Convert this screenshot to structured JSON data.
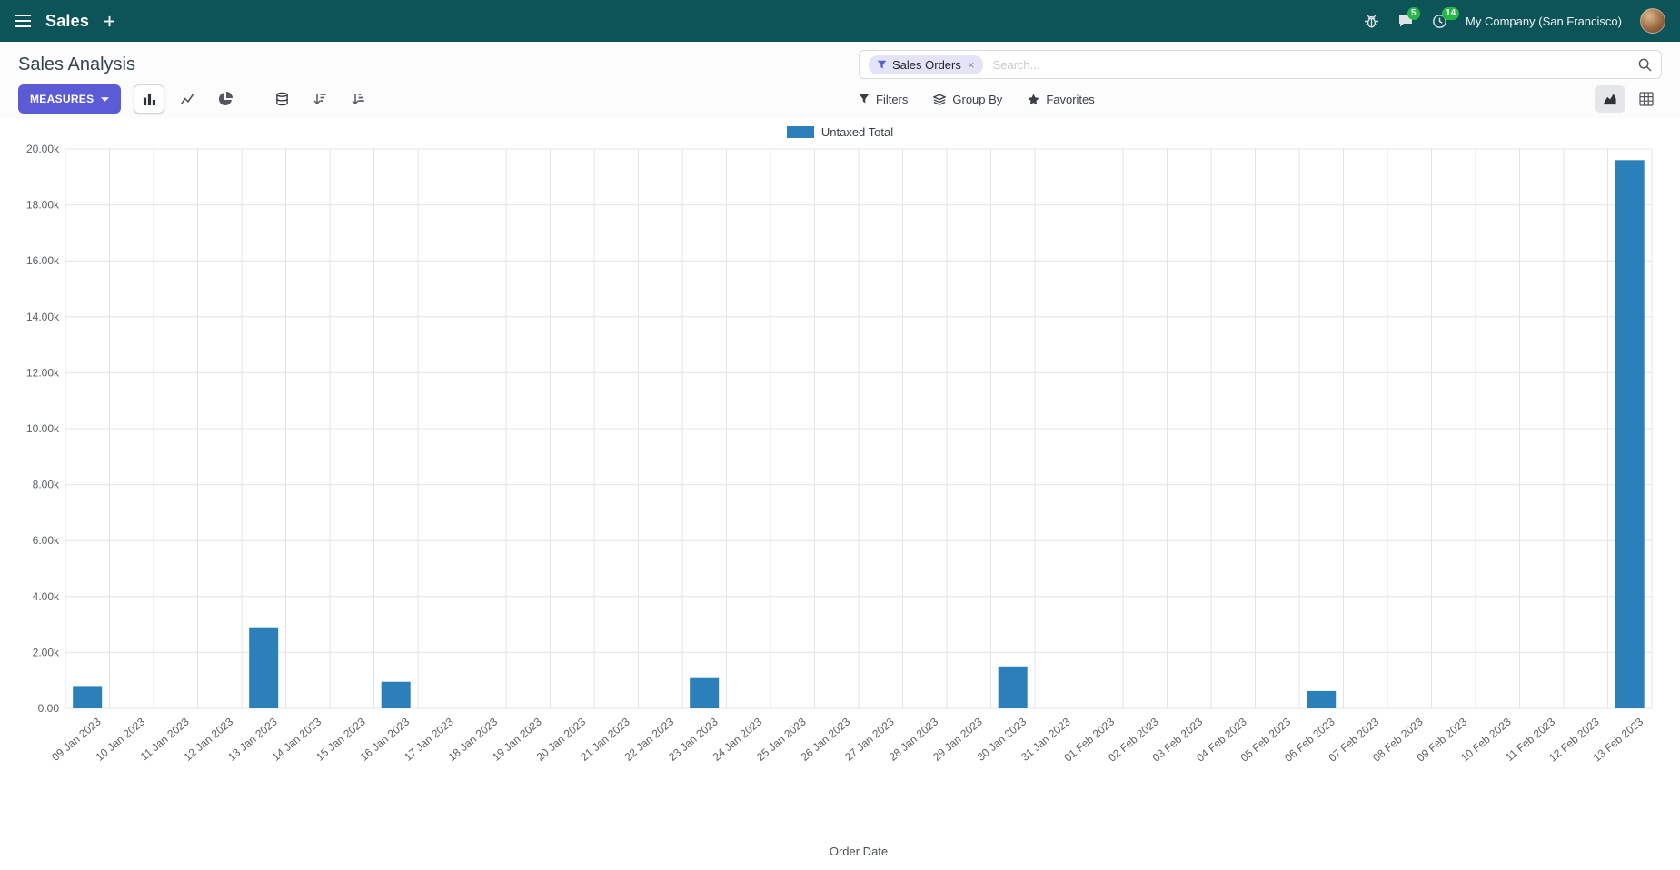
{
  "colors": {
    "navbar_bg": "#0d5458",
    "primary_button": "#5c5bd6",
    "badge_green": "#27b648",
    "bar": "#2b80b9"
  },
  "navbar": {
    "app_name": "Sales",
    "messages_badge": "5",
    "activities_badge": "14",
    "company": "My Company (San Francisco)"
  },
  "control_panel": {
    "title": "Sales Analysis",
    "measures_label": "MEASURES",
    "filters_label": "Filters",
    "group_by_label": "Group By",
    "favorites_label": "Favorites",
    "search": {
      "facet_label": "Sales Orders",
      "facet_remove": "×",
      "placeholder": "Search..."
    }
  },
  "chart_data": {
    "type": "bar",
    "title": "",
    "legend": [
      "Untaxed Total"
    ],
    "xlabel": "Order Date",
    "ylabel": "",
    "ylim": [
      0,
      20000
    ],
    "ytick_step": 2000,
    "grid": true,
    "legend_position": "top-center",
    "color": "#2b80b9",
    "categories": [
      "09 Jan 2023",
      "10 Jan 2023",
      "11 Jan 2023",
      "12 Jan 2023",
      "13 Jan 2023",
      "14 Jan 2023",
      "15 Jan 2023",
      "16 Jan 2023",
      "17 Jan 2023",
      "18 Jan 2023",
      "19 Jan 2023",
      "20 Jan 2023",
      "21 Jan 2023",
      "22 Jan 2023",
      "23 Jan 2023",
      "24 Jan 2023",
      "25 Jan 2023",
      "26 Jan 2023",
      "27 Jan 2023",
      "28 Jan 2023",
      "29 Jan 2023",
      "30 Jan 2023",
      "31 Jan 2023",
      "01 Feb 2023",
      "02 Feb 2023",
      "03 Feb 2023",
      "04 Feb 2023",
      "05 Feb 2023",
      "06 Feb 2023",
      "07 Feb 2023",
      "08 Feb 2023",
      "09 Feb 2023",
      "10 Feb 2023",
      "11 Feb 2023",
      "12 Feb 2023",
      "13 Feb 2023"
    ],
    "values": [
      800,
      0,
      0,
      0,
      2900,
      0,
      0,
      950,
      0,
      0,
      0,
      0,
      0,
      0,
      1080,
      0,
      0,
      0,
      0,
      0,
      0,
      1500,
      0,
      0,
      0,
      0,
      0,
      0,
      620,
      0,
      0,
      0,
      0,
      0,
      0,
      19600
    ]
  }
}
